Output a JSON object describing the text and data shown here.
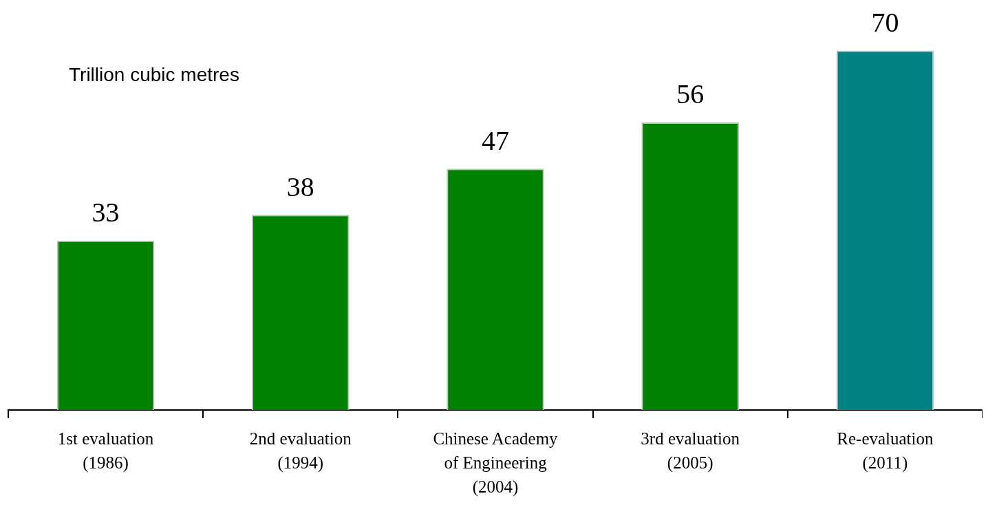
{
  "chart_data": {
    "type": "bar",
    "ylabel": "Trillion cubic metres",
    "categories": [
      "1st evaluation (1986)",
      "2nd evaluation (1994)",
      "Chinese Academy of Engineering (2004)",
      "3rd evaluation (2005)",
      "Re-evaluation (2011)"
    ],
    "values": [
      33,
      38,
      47,
      56,
      70
    ],
    "colors": [
      "#008000",
      "#008000",
      "#008000",
      "#008000",
      "#008080"
    ],
    "data_labels": true,
    "grid": false,
    "legend": false
  }
}
